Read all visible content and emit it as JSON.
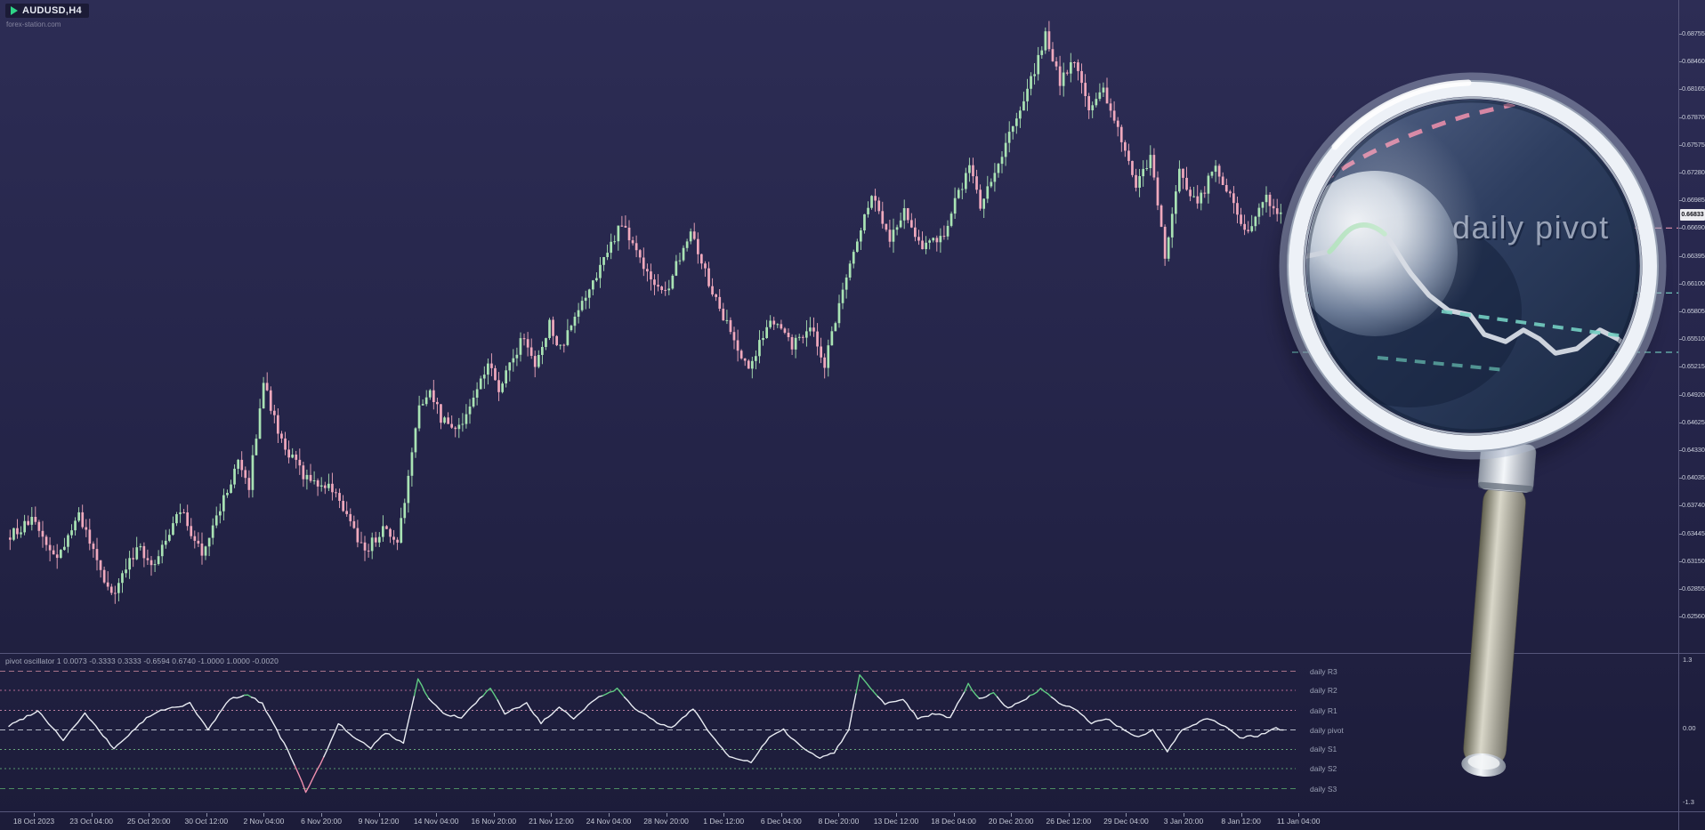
{
  "header": {
    "symbol_label": "AUDUSD,H4",
    "watermark": "forex-station.com"
  },
  "magnifier": {
    "label": "daily pivot"
  },
  "colors": {
    "bull": "#a9e3b4",
    "bear": "#f0a9bd",
    "osc_line": "#e9ecf3",
    "osc_up": "#5fcb82",
    "osc_down": "#ef8fae",
    "scale_text": "#c9cdda",
    "current_price_bg": "#ececf0",
    "separator": "#56567a"
  },
  "chart_data": [
    {
      "type": "candlestick",
      "symbol": "AUDUSD",
      "timeframe": "H4",
      "bars_total": 352,
      "last_close": 0.66833,
      "current_price_label": "0.66833",
      "y_range": [
        0.6216,
        0.6911
      ],
      "y_tick_labels": [
        "0.68755",
        "0.68460",
        "0.68165",
        "0.67870",
        "0.67575",
        "0.67280",
        "0.66985",
        "0.66690",
        "0.66395",
        "0.66100",
        "0.65805",
        "0.65510",
        "0.65215",
        "0.64920",
        "0.64625",
        "0.64330",
        "0.64035",
        "0.63740",
        "0.63445",
        "0.63150",
        "0.62855",
        "0.62560"
      ],
      "time_labels": [
        "18 Oct 2023",
        "23 Oct 04:00",
        "25 Oct 20:00",
        "30 Oct 12:00",
        "2 Nov 04:00",
        "6 Nov 20:00",
        "9 Nov 12:00",
        "14 Nov 04:00",
        "16 Nov 20:00",
        "21 Nov 12:00",
        "24 Nov 04:00",
        "28 Nov 20:00",
        "1 Dec 12:00",
        "6 Dec 04:00",
        "8 Dec 20:00",
        "13 Dec 12:00",
        "18 Dec 04:00",
        "20 Dec 20:00",
        "26 Dec 12:00",
        "29 Dec 04:00",
        "3 Jan 20:00",
        "8 Jan 12:00",
        "11 Jan 04:00"
      ],
      "price_waypoints": [
        [
          0,
          0.634
        ],
        [
          7,
          0.6357
        ],
        [
          14,
          0.6317
        ],
        [
          20,
          0.6363
        ],
        [
          29,
          0.6276
        ],
        [
          36,
          0.633
        ],
        [
          41,
          0.6312
        ],
        [
          48,
          0.6369
        ],
        [
          54,
          0.6325
        ],
        [
          64,
          0.6418
        ],
        [
          67,
          0.6395
        ],
        [
          71,
          0.6506
        ],
        [
          76,
          0.644
        ],
        [
          82,
          0.6406
        ],
        [
          90,
          0.6392
        ],
        [
          99,
          0.6325
        ],
        [
          104,
          0.635
        ],
        [
          108,
          0.6333
        ],
        [
          114,
          0.6476
        ],
        [
          117,
          0.65
        ],
        [
          120,
          0.6465
        ],
        [
          125,
          0.6455
        ],
        [
          133,
          0.6526
        ],
        [
          136,
          0.6495
        ],
        [
          143,
          0.6556
        ],
        [
          146,
          0.652
        ],
        [
          150,
          0.6566
        ],
        [
          153,
          0.654
        ],
        [
          163,
          0.662
        ],
        [
          170,
          0.6676
        ],
        [
          176,
          0.6625
        ],
        [
          182,
          0.66
        ],
        [
          189,
          0.667
        ],
        [
          195,
          0.66
        ],
        [
          205,
          0.6518
        ],
        [
          211,
          0.6576
        ],
        [
          217,
          0.6545
        ],
        [
          222,
          0.6566
        ],
        [
          226,
          0.6525
        ],
        [
          235,
          0.666
        ],
        [
          239,
          0.6706
        ],
        [
          244,
          0.666
        ],
        [
          248,
          0.669
        ],
        [
          253,
          0.6645
        ],
        [
          259,
          0.6665
        ],
        [
          266,
          0.6736
        ],
        [
          269,
          0.669
        ],
        [
          275,
          0.675
        ],
        [
          281,
          0.68
        ],
        [
          287,
          0.6876
        ],
        [
          291,
          0.6825
        ],
        [
          295,
          0.685
        ],
        [
          299,
          0.679
        ],
        [
          303,
          0.6816
        ],
        [
          308,
          0.676
        ],
        [
          312,
          0.6715
        ],
        [
          316,
          0.6745
        ],
        [
          320,
          0.664
        ],
        [
          324,
          0.6727
        ],
        [
          329,
          0.6692
        ],
        [
          334,
          0.6738
        ],
        [
          342,
          0.6663
        ],
        [
          348,
          0.67
        ],
        [
          352,
          0.66833
        ]
      ],
      "pivot_lines": [
        {
          "price": 0.6669,
          "color": "#d98ba6"
        },
        {
          "price": 0.66,
          "color": "#72c9bd"
        },
        {
          "price": 0.6537,
          "color": "#72c9bd"
        }
      ]
    },
    {
      "type": "line",
      "name": "pivot oscillator",
      "title": "pivot oscillator 1 0.0073 -0.3333 0.3333 -0.6594 0.6740 -1.0000 1.0000 -0.0020",
      "y_range": [
        -1.3,
        1.3
      ],
      "last_value": -0.002,
      "scale": {
        "top": "1.3",
        "mid": "0.00",
        "bottom": "-1.3"
      },
      "levels": [
        {
          "label": "daily R3",
          "value": 1.0,
          "color": "#b77e93",
          "dash": "6,4"
        },
        {
          "label": "daily R2",
          "value": 0.674,
          "color": "#c0739c",
          "dash": "2,3"
        },
        {
          "label": "daily R1",
          "value": 0.3333,
          "color": "#cd8cac",
          "dash": "2,3"
        },
        {
          "label": "daily pivot",
          "value": 0,
          "color": "#c7ccd8",
          "dash": "6,4"
        },
        {
          "label": "daily S1",
          "value": -0.3333,
          "color": "#72b084",
          "dash": "2,3"
        },
        {
          "label": "daily S2",
          "value": -0.6594,
          "color": "#60a674",
          "dash": "2,3"
        },
        {
          "label": "daily S3",
          "value": -1.0,
          "color": "#539b67",
          "dash": "6,4"
        }
      ],
      "waypoints": [
        [
          0,
          0.07
        ],
        [
          8,
          0.33
        ],
        [
          15,
          -0.17
        ],
        [
          21,
          0.28
        ],
        [
          29,
          -0.32
        ],
        [
          38,
          0.2
        ],
        [
          42,
          0.33
        ],
        [
          50,
          0.45
        ],
        [
          55,
          0.0
        ],
        [
          61,
          0.53
        ],
        [
          66,
          0.6
        ],
        [
          70,
          0.45
        ],
        [
          74,
          0.0
        ],
        [
          78,
          -0.47
        ],
        [
          82,
          -1.05
        ],
        [
          87,
          -0.47
        ],
        [
          91,
          0.12
        ],
        [
          95,
          -0.13
        ],
        [
          100,
          -0.3
        ],
        [
          104,
          -0.05
        ],
        [
          109,
          -0.22
        ],
        [
          113,
          0.87
        ],
        [
          116,
          0.53
        ],
        [
          120,
          0.28
        ],
        [
          125,
          0.2
        ],
        [
          130,
          0.53
        ],
        [
          133,
          0.7
        ],
        [
          137,
          0.28
        ],
        [
          143,
          0.45
        ],
        [
          147,
          0.12
        ],
        [
          152,
          0.37
        ],
        [
          156,
          0.2
        ],
        [
          162,
          0.53
        ],
        [
          168,
          0.7
        ],
        [
          173,
          0.37
        ],
        [
          179,
          0.12
        ],
        [
          183,
          0.03
        ],
        [
          189,
          0.37
        ],
        [
          193,
          0.0
        ],
        [
          199,
          -0.47
        ],
        [
          205,
          -0.55
        ],
        [
          210,
          -0.13
        ],
        [
          214,
          0.0
        ],
        [
          219,
          -0.3
        ],
        [
          224,
          -0.47
        ],
        [
          228,
          -0.38
        ],
        [
          232,
          0.0
        ],
        [
          235,
          0.95
        ],
        [
          238,
          0.7
        ],
        [
          242,
          0.45
        ],
        [
          247,
          0.53
        ],
        [
          251,
          0.2
        ],
        [
          256,
          0.28
        ],
        [
          260,
          0.2
        ],
        [
          265,
          0.78
        ],
        [
          268,
          0.53
        ],
        [
          272,
          0.62
        ],
        [
          276,
          0.37
        ],
        [
          281,
          0.53
        ],
        [
          285,
          0.7
        ],
        [
          290,
          0.45
        ],
        [
          294,
          0.37
        ],
        [
          299,
          0.12
        ],
        [
          303,
          0.2
        ],
        [
          308,
          0.0
        ],
        [
          312,
          -0.13
        ],
        [
          316,
          0.0
        ],
        [
          320,
          -0.38
        ],
        [
          324,
          0.0
        ],
        [
          327,
          0.07
        ],
        [
          331,
          0.2
        ],
        [
          336,
          0.07
        ],
        [
          340,
          -0.13
        ],
        [
          345,
          -0.1
        ],
        [
          350,
          0.03
        ],
        [
          352,
          -0.002
        ]
      ]
    }
  ]
}
